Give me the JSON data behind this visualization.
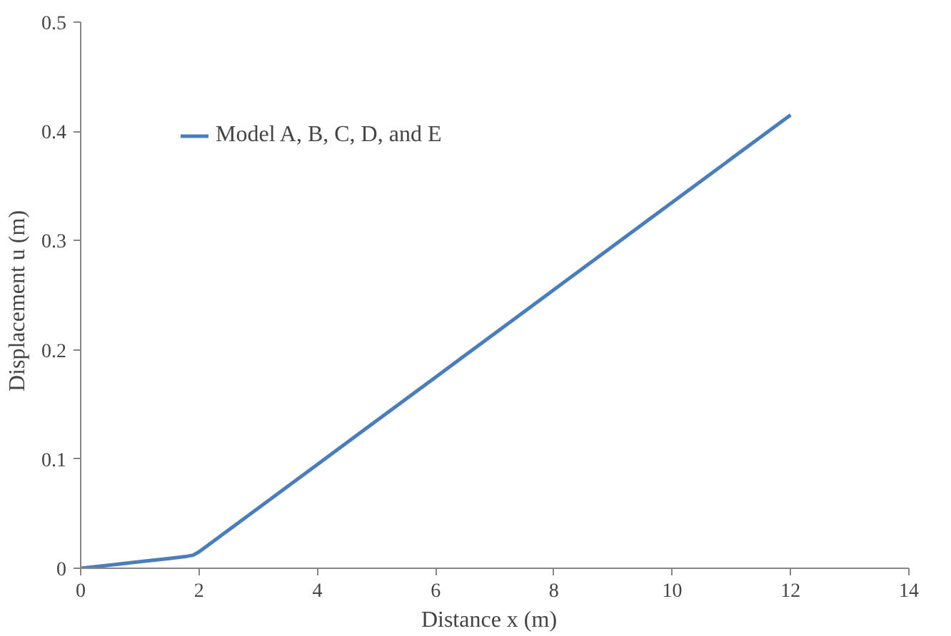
{
  "chart_data": {
    "type": "line",
    "xlabel": "Distance  x  (m)",
    "ylabel": "Displacement  u  (m)",
    "xlim": [
      0,
      14
    ],
    "xticks": [
      0,
      2,
      4,
      6,
      8,
      10,
      12,
      14
    ],
    "ylim": [
      0,
      0.5
    ],
    "yticks": [
      0,
      0.1,
      0.2,
      0.3,
      0.4,
      0.5
    ],
    "grid": false,
    "legend": "top left",
    "marker": "none",
    "line_style": "solid",
    "series": [
      {
        "name": "Model A, B, C, D, and E",
        "color": "#4a7ebb",
        "x": [
          0,
          0.5,
          1,
          1.5,
          1.8,
          1.9,
          2,
          4,
          6,
          8,
          10,
          12
        ],
        "values": [
          0,
          0.003,
          0.006,
          0.009,
          0.011,
          0.012,
          0.015,
          0.095,
          0.175,
          0.255,
          0.335,
          0.415
        ]
      }
    ]
  }
}
